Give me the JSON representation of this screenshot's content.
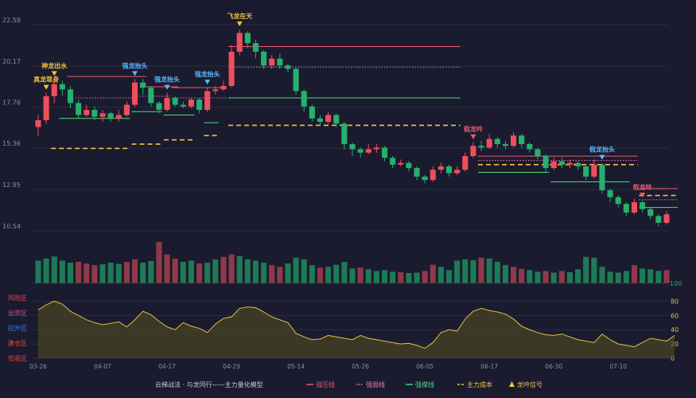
{
  "chart_data": {
    "type": "candlestick",
    "y_ticks": [
      "22.58",
      "20.17",
      "17.76",
      "15.36",
      "12.95",
      "10.54"
    ],
    "y_tick_values": [
      22.58,
      20.17,
      17.76,
      15.36,
      12.95,
      10.54
    ],
    "ylim": [
      9.6,
      23.0
    ],
    "x_ticks": [
      {
        "label": "03-26",
        "index": 0
      },
      {
        "label": "04-07",
        "index": 8
      },
      {
        "label": "04-17",
        "index": 16
      },
      {
        "label": "04-29",
        "index": 24
      },
      {
        "label": "05-14",
        "index": 32
      },
      {
        "label": "05-26",
        "index": 40
      },
      {
        "label": "06-05",
        "index": 48
      },
      {
        "label": "06-17",
        "index": 56
      },
      {
        "label": "06-30",
        "index": 64
      },
      {
        "label": "07-10",
        "index": 72
      }
    ],
    "candles": [
      [
        16.6,
        17.0,
        17.3,
        16.1
      ],
      [
        17.0,
        18.4,
        18.6,
        16.8
      ],
      [
        18.4,
        19.1,
        19.4,
        18.0
      ],
      [
        19.1,
        18.8,
        19.3,
        18.4
      ],
      [
        18.8,
        18.0,
        19.0,
        17.7
      ],
      [
        18.0,
        17.3,
        18.2,
        17.1
      ],
      [
        17.3,
        17.6,
        17.9,
        17.2
      ],
      [
        17.6,
        17.2,
        17.8,
        17.0
      ],
      [
        17.2,
        17.4,
        17.6,
        16.9
      ],
      [
        17.4,
        17.1,
        17.5,
        16.9
      ],
      [
        17.1,
        17.3,
        17.6,
        16.9
      ],
      [
        17.3,
        17.9,
        18.1,
        17.2
      ],
      [
        17.9,
        19.2,
        19.4,
        17.8
      ],
      [
        19.2,
        18.9,
        19.4,
        18.5
      ],
      [
        18.9,
        18.0,
        19.0,
        17.8
      ],
      [
        18.0,
        17.6,
        18.1,
        17.4
      ],
      [
        17.6,
        18.3,
        18.6,
        17.5
      ],
      [
        18.3,
        17.9,
        18.4,
        17.8
      ],
      [
        17.9,
        17.8,
        18.1,
        17.7
      ],
      [
        17.8,
        18.2,
        18.3,
        17.7
      ],
      [
        18.2,
        17.6,
        18.3,
        17.4
      ],
      [
        17.6,
        18.7,
        18.9,
        17.5
      ],
      [
        18.7,
        18.8,
        19.0,
        18.5
      ],
      [
        18.8,
        19.0,
        19.3,
        18.7
      ],
      [
        19.0,
        21.0,
        21.4,
        18.9
      ],
      [
        21.0,
        22.1,
        22.3,
        20.8
      ],
      [
        22.1,
        21.5,
        22.2,
        21.2
      ],
      [
        21.5,
        21.0,
        21.7,
        20.6
      ],
      [
        21.0,
        20.2,
        21.1,
        20.0
      ],
      [
        20.2,
        20.6,
        20.8,
        20.0
      ],
      [
        20.6,
        20.2,
        20.9,
        20.0
      ],
      [
        20.2,
        20.0,
        20.3,
        19.8
      ],
      [
        20.0,
        18.7,
        20.1,
        18.5
      ],
      [
        18.7,
        17.8,
        18.8,
        17.5
      ],
      [
        17.8,
        17.1,
        17.9,
        16.9
      ],
      [
        17.1,
        16.9,
        17.3,
        16.7
      ],
      [
        16.9,
        17.3,
        17.5,
        16.8
      ],
      [
        17.3,
        16.8,
        17.4,
        16.6
      ],
      [
        16.8,
        15.6,
        16.9,
        15.3
      ],
      [
        15.6,
        15.3,
        15.7,
        14.9
      ],
      [
        15.3,
        15.1,
        15.4,
        14.8
      ],
      [
        15.1,
        15.3,
        15.6,
        15.0
      ],
      [
        15.3,
        15.4,
        15.6,
        15.1
      ],
      [
        15.4,
        14.8,
        15.5,
        14.6
      ],
      [
        14.8,
        14.4,
        14.9,
        14.2
      ],
      [
        14.4,
        14.5,
        14.7,
        14.3
      ],
      [
        14.5,
        14.2,
        14.6,
        14.0
      ],
      [
        14.2,
        13.7,
        14.3,
        13.5
      ],
      [
        13.7,
        13.5,
        13.8,
        13.3
      ],
      [
        13.5,
        14.1,
        14.3,
        13.4
      ],
      [
        14.1,
        14.3,
        14.5,
        13.9
      ],
      [
        14.3,
        13.9,
        14.4,
        13.7
      ],
      [
        13.9,
        14.1,
        14.3,
        13.8
      ],
      [
        14.1,
        14.9,
        15.1,
        14.0
      ],
      [
        14.9,
        15.5,
        15.7,
        14.8
      ],
      [
        15.5,
        15.4,
        15.8,
        15.2
      ],
      [
        15.4,
        15.9,
        16.2,
        15.3
      ],
      [
        15.9,
        15.6,
        16.0,
        15.4
      ],
      [
        15.6,
        15.5,
        15.8,
        15.3
      ],
      [
        15.5,
        16.1,
        16.3,
        15.4
      ],
      [
        16.1,
        15.6,
        16.2,
        15.4
      ],
      [
        15.6,
        15.3,
        15.7,
        15.1
      ],
      [
        15.3,
        14.9,
        15.4,
        14.7
      ],
      [
        14.9,
        14.2,
        15.0,
        14.0
      ],
      [
        14.2,
        14.6,
        14.8,
        14.1
      ],
      [
        14.6,
        14.4,
        14.8,
        14.2
      ],
      [
        14.4,
        14.5,
        14.7,
        14.2
      ],
      [
        14.5,
        14.3,
        14.6,
        14.1
      ],
      [
        14.3,
        13.7,
        14.4,
        13.5
      ],
      [
        13.7,
        14.4,
        14.7,
        13.6
      ],
      [
        14.4,
        12.9,
        14.5,
        12.7
      ],
      [
        12.9,
        12.5,
        13.0,
        12.2
      ],
      [
        12.5,
        12.1,
        12.6,
        11.9
      ],
      [
        12.1,
        11.6,
        12.2,
        11.4
      ],
      [
        11.6,
        12.2,
        12.4,
        11.5
      ],
      [
        12.2,
        11.8,
        12.3,
        11.6
      ],
      [
        11.8,
        11.4,
        11.9,
        11.2
      ],
      [
        11.4,
        11.0,
        11.5,
        10.8
      ],
      [
        11.0,
        11.5,
        11.7,
        10.9
      ]
    ],
    "volumes": [
      {
        "v": 55,
        "up": false
      },
      {
        "v": 60,
        "up": false
      },
      {
        "v": 65,
        "up": false
      },
      {
        "v": 55,
        "up": false
      },
      {
        "v": 50,
        "up": false
      },
      {
        "v": 52,
        "up": true
      },
      {
        "v": 48,
        "up": true
      },
      {
        "v": 44,
        "up": true
      },
      {
        "v": 46,
        "up": false
      },
      {
        "v": 50,
        "up": false
      },
      {
        "v": 47,
        "up": false
      },
      {
        "v": 52,
        "up": true
      },
      {
        "v": 58,
        "up": true
      },
      {
        "v": 50,
        "up": false
      },
      {
        "v": 54,
        "up": false
      },
      {
        "v": 100,
        "up": true
      },
      {
        "v": 70,
        "up": true
      },
      {
        "v": 60,
        "up": true
      },
      {
        "v": 52,
        "up": false
      },
      {
        "v": 55,
        "up": false
      },
      {
        "v": 48,
        "up": true
      },
      {
        "v": 50,
        "up": false
      },
      {
        "v": 58,
        "up": false
      },
      {
        "v": 64,
        "up": true
      },
      {
        "v": 70,
        "up": true
      },
      {
        "v": 66,
        "up": false
      },
      {
        "v": 58,
        "up": false
      },
      {
        "v": 55,
        "up": false
      },
      {
        "v": 50,
        "up": false
      },
      {
        "v": 44,
        "up": true
      },
      {
        "v": 40,
        "up": true
      },
      {
        "v": 48,
        "up": false
      },
      {
        "v": 62,
        "up": false
      },
      {
        "v": 58,
        "up": false
      },
      {
        "v": 44,
        "up": false
      },
      {
        "v": 38,
        "up": true
      },
      {
        "v": 40,
        "up": false
      },
      {
        "v": 45,
        "up": false
      },
      {
        "v": 52,
        "up": false
      },
      {
        "v": 36,
        "up": false
      },
      {
        "v": 38,
        "up": true
      },
      {
        "v": 34,
        "up": false
      },
      {
        "v": 30,
        "up": false
      },
      {
        "v": 32,
        "up": false
      },
      {
        "v": 28,
        "up": false
      },
      {
        "v": 27,
        "up": true
      },
      {
        "v": 25,
        "up": false
      },
      {
        "v": 26,
        "up": false
      },
      {
        "v": 30,
        "up": true
      },
      {
        "v": 45,
        "up": true
      },
      {
        "v": 40,
        "up": false
      },
      {
        "v": 32,
        "up": false
      },
      {
        "v": 55,
        "up": false
      },
      {
        "v": 58,
        "up": false
      },
      {
        "v": 56,
        "up": false
      },
      {
        "v": 62,
        "up": true
      },
      {
        "v": 60,
        "up": false
      },
      {
        "v": 52,
        "up": false
      },
      {
        "v": 44,
        "up": false
      },
      {
        "v": 40,
        "up": true
      },
      {
        "v": 35,
        "up": true
      },
      {
        "v": 32,
        "up": false
      },
      {
        "v": 28,
        "up": false
      },
      {
        "v": 30,
        "up": true
      },
      {
        "v": 26,
        "up": false
      },
      {
        "v": 30,
        "up": true
      },
      {
        "v": 27,
        "up": false
      },
      {
        "v": 34,
        "up": false
      },
      {
        "v": 64,
        "up": false
      },
      {
        "v": 62,
        "up": false
      },
      {
        "v": 40,
        "up": false
      },
      {
        "v": 28,
        "up": false
      },
      {
        "v": 26,
        "up": false
      },
      {
        "v": 30,
        "up": false
      },
      {
        "v": 44,
        "up": true
      },
      {
        "v": 36,
        "up": false
      },
      {
        "v": 34,
        "up": false
      },
      {
        "v": 30,
        "up": false
      },
      {
        "v": 32,
        "up": true
      }
    ],
    "volume_max_label": "100",
    "indicator": {
      "left_zones": [
        {
          "label": "风险区",
          "color": "#e8454f"
        },
        {
          "label": "出货区",
          "color": "#d946a8"
        },
        {
          "label": "拉升区",
          "color": "#3b82f6"
        },
        {
          "label": "建仓区",
          "color": "#ef4444"
        },
        {
          "label": "低吸区",
          "color": "#ef4444"
        }
      ],
      "right_ticks": [
        "80",
        "60",
        "40",
        "20",
        "0"
      ],
      "right_tick_values": [
        80,
        60,
        40,
        20,
        0
      ],
      "ylim": [
        0,
        85
      ],
      "values": [
        68,
        75,
        80,
        76,
        66,
        60,
        54,
        50,
        47,
        49,
        51,
        44,
        54,
        66,
        61,
        52,
        44,
        40,
        50,
        45,
        42,
        36,
        48,
        56,
        58,
        70,
        72,
        71,
        65,
        58,
        54,
        50,
        35,
        30,
        26,
        27,
        32,
        30,
        28,
        26,
        32,
        28,
        26,
        24,
        22,
        20,
        21,
        18,
        14,
        22,
        36,
        40,
        38,
        55,
        66,
        70,
        67,
        65,
        62,
        55,
        45,
        40,
        36,
        33,
        32,
        34,
        30,
        26,
        24,
        22,
        34,
        26,
        20,
        18,
        16,
        22,
        28,
        26,
        24,
        32
      ]
    },
    "pressure_lines": [
      {
        "start": 4,
        "end": 13,
        "y": 19.55
      },
      {
        "start": 13,
        "end": 17,
        "y": 18.95
      },
      {
        "start": 17,
        "end": 23,
        "y": 18.9
      },
      {
        "start": 24,
        "end": 52,
        "y": 21.3
      },
      {
        "start": 55,
        "end": 74,
        "y": 14.9
      },
      {
        "start": 75,
        "end": 79,
        "y": 13.0
      }
    ],
    "weak_lines": [
      {
        "start": 5,
        "end": 12,
        "y": 18.3
      },
      {
        "start": 13,
        "end": 16,
        "y": 18.4
      },
      {
        "start": 17,
        "end": 23,
        "y": 18.3
      },
      {
        "start": 24,
        "end": 52,
        "y": 20.1
      },
      {
        "start": 55,
        "end": 74,
        "y": 14.65
      },
      {
        "start": 75,
        "end": 79,
        "y": 12.35
      }
    ],
    "support_lines": [
      {
        "start": 3,
        "end": 11,
        "y": 17.1
      },
      {
        "start": 12,
        "end": 15,
        "y": 17.5
      },
      {
        "start": 16,
        "end": 19,
        "y": 17.3
      },
      {
        "start": 21,
        "end": 22,
        "y": 16.85
      },
      {
        "start": 24,
        "end": 52,
        "y": 18.3
      },
      {
        "start": 55,
        "end": 63,
        "y": 13.95
      },
      {
        "start": 64,
        "end": 73,
        "y": 13.4
      },
      {
        "start": 75,
        "end": 79,
        "y": 11.9
      }
    ],
    "cost_lines": [
      {
        "start": 2,
        "end": 11,
        "y": 15.35
      },
      {
        "start": 12,
        "end": 15,
        "y": 15.6
      },
      {
        "start": 16,
        "end": 19,
        "y": 15.85
      },
      {
        "start": 21,
        "end": 22,
        "y": 16.1
      },
      {
        "start": 24,
        "end": 52,
        "y": 16.7
      },
      {
        "start": 55,
        "end": 74,
        "y": 14.4
      },
      {
        "start": 75,
        "end": 79,
        "y": 12.6
      }
    ],
    "signals": [
      {
        "label": "真龙现身",
        "index": 1,
        "color": "#f5c23d"
      },
      {
        "label": "神龙出水",
        "index": 2,
        "color": "#f5c23d"
      },
      {
        "label": "强龙抬头",
        "index": 12,
        "color": "#5eb8ff"
      },
      {
        "label": "强龙抬头",
        "index": 16,
        "color": "#5eb8ff"
      },
      {
        "label": "强龙抬头",
        "index": 21,
        "color": "#5eb8ff"
      },
      {
        "label": "飞龙在天",
        "index": 25,
        "color": "#f5c23d"
      },
      {
        "label": "假龙吟",
        "index": 54,
        "color": "#ef5a6f"
      },
      {
        "label": "假龙抬头",
        "index": 70,
        "color": "#5eb8ff"
      },
      {
        "label": "假龙吟",
        "index": 75,
        "color": "#ef5a6f"
      }
    ],
    "legend": [
      {
        "label": "云梯战法 · 与龙同行——主力量化模型",
        "color": "#c7ccd9",
        "kind": "text"
      },
      {
        "label": "强压线",
        "color": "#ef5a6f",
        "kind": "solid"
      },
      {
        "label": "强弱线",
        "color": "#e879c0",
        "kind": "dot"
      },
      {
        "label": "强撑线",
        "color": "#4ade80",
        "kind": "solid"
      },
      {
        "label": "主力成本",
        "color": "#f5c23d",
        "kind": "dash"
      },
      {
        "label": "龙吟信号",
        "color": "#f5c23d",
        "kind": "triangle"
      }
    ],
    "colors": {
      "up": "#ef4f5c",
      "down": "#26b06e",
      "up_vol": "#8e3a48",
      "down_vol": "#1f7a57",
      "indicator_line": "#e0c040",
      "indicator_fill": "#5a5020"
    }
  }
}
